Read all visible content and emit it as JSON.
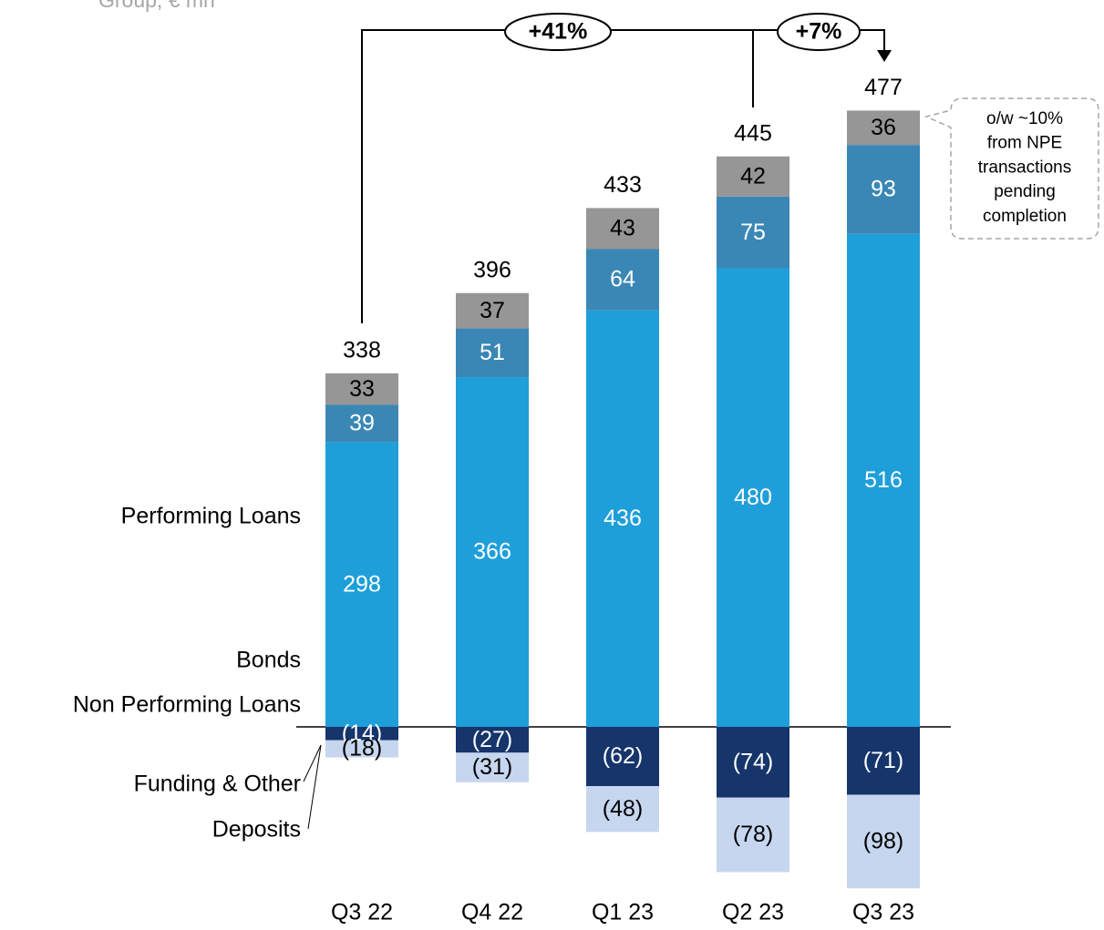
{
  "subtitle": "Group, € mn",
  "chart_data": {
    "type": "bar",
    "stacked": true,
    "categories": [
      "Q3 22",
      "Q4 22",
      "Q1 23",
      "Q2 23",
      "Q3 23"
    ],
    "series": [
      {
        "name": "Performing Loans",
        "color": "#1f9fd9",
        "values": [
          298,
          366,
          436,
          480,
          516
        ]
      },
      {
        "name": "Bonds",
        "color": "#3a87b6",
        "values": [
          39,
          51,
          64,
          75,
          93
        ]
      },
      {
        "name": "Non Performing Loans",
        "color": "#969696",
        "values": [
          33,
          37,
          43,
          42,
          36
        ]
      },
      {
        "name": "Funding & Other",
        "color": "#15356b",
        "values": [
          -14,
          -27,
          -62,
          -74,
          -71
        ],
        "value_labels": [
          "(14)",
          "(27)",
          "(62)",
          "(74)",
          "(71)"
        ]
      },
      {
        "name": "Deposits",
        "color": "#c6d6ef",
        "values": [
          -18,
          -31,
          -48,
          -78,
          -98
        ],
        "value_labels": [
          "(18)",
          "(31)",
          "(48)",
          "(78)",
          "(98)"
        ]
      }
    ],
    "totals": [
      338,
      396,
      433,
      445,
      477
    ],
    "annotations": [
      "+41%",
      "+7%"
    ],
    "callout": [
      "o/w ~10%",
      "from NPE",
      "transactions",
      "pending",
      "completion"
    ]
  }
}
